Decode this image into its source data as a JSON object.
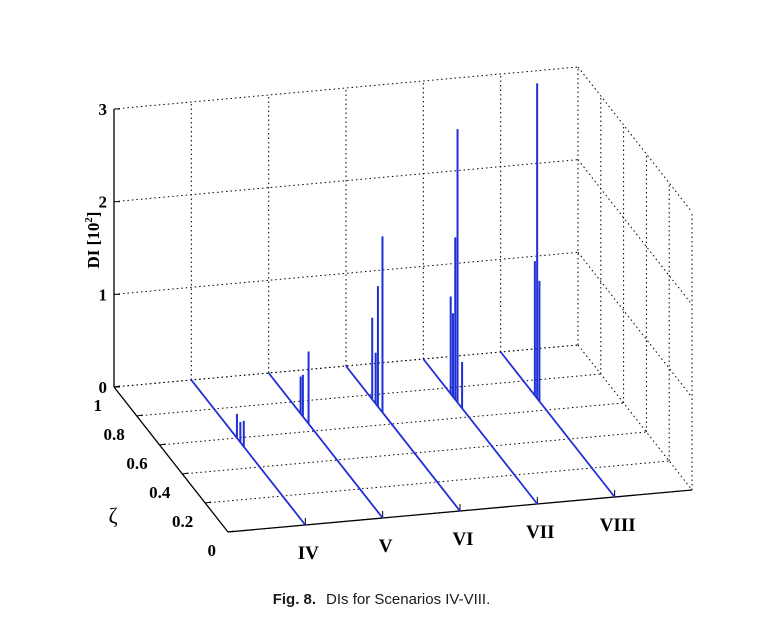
{
  "chart_data": {
    "type": "bar",
    "subtype": "3d-stem",
    "categories": [
      "IV",
      "V",
      "VI",
      "VII",
      "VIII"
    ],
    "ylabel_text": "DI [10",
    "ylabel_sup": "2",
    "ylabel_end": "]",
    "zeta_label": "ζ",
    "ylim": [
      0,
      3
    ],
    "yticks": [
      {
        "v": 0,
        "label": "0"
      },
      {
        "v": 1,
        "label": "1"
      },
      {
        "v": 2,
        "label": "2"
      },
      {
        "v": 3,
        "label": "3"
      }
    ],
    "zeta_range": [
      0,
      1
    ],
    "zeta_ticks": [
      {
        "v": 0,
        "label": "0"
      },
      {
        "v": 0.2,
        "label": "0.2"
      },
      {
        "v": 0.4,
        "label": "0.4"
      },
      {
        "v": 0.6,
        "label": "0.6"
      },
      {
        "v": 0.8,
        "label": "0.8"
      },
      {
        "v": 1,
        "label": "1"
      }
    ],
    "grid": true,
    "line_color": "#1f2fd6",
    "series": [
      {
        "category": "IV",
        "stems": [
          {
            "zeta": 0.57,
            "value": 0.22
          },
          {
            "zeta": 0.6,
            "value": 0.26
          },
          {
            "zeta": 0.54,
            "value": 0.28
          }
        ]
      },
      {
        "category": "V",
        "stems": [
          {
            "zeta": 0.72,
            "value": 0.4
          },
          {
            "zeta": 0.7,
            "value": 0.45
          },
          {
            "zeta": 0.65,
            "value": 0.78
          }
        ]
      },
      {
        "category": "VI",
        "stems": [
          {
            "zeta": 0.77,
            "value": 0.88
          },
          {
            "zeta": 0.74,
            "value": 0.55
          },
          {
            "zeta": 0.72,
            "value": 1.3
          },
          {
            "zeta": 0.68,
            "value": 1.9
          }
        ]
      },
      {
        "category": "VII",
        "stems": [
          {
            "zeta": 0.76,
            "value": 1.05
          },
          {
            "zeta": 0.74,
            "value": 0.9
          },
          {
            "zeta": 0.72,
            "value": 1.75
          },
          {
            "zeta": 0.7,
            "value": 2.95
          },
          {
            "zeta": 0.66,
            "value": 0.5
          }
        ]
      },
      {
        "category": "VIII",
        "stems": [
          {
            "zeta": 0.7,
            "value": 1.45
          },
          {
            "zeta": 0.68,
            "value": 3.4
          },
          {
            "zeta": 0.66,
            "value": 1.3
          }
        ]
      }
    ]
  },
  "caption": {
    "figure": "Fig. 8.",
    "text": "DIs for Scenarios IV-VIII."
  }
}
